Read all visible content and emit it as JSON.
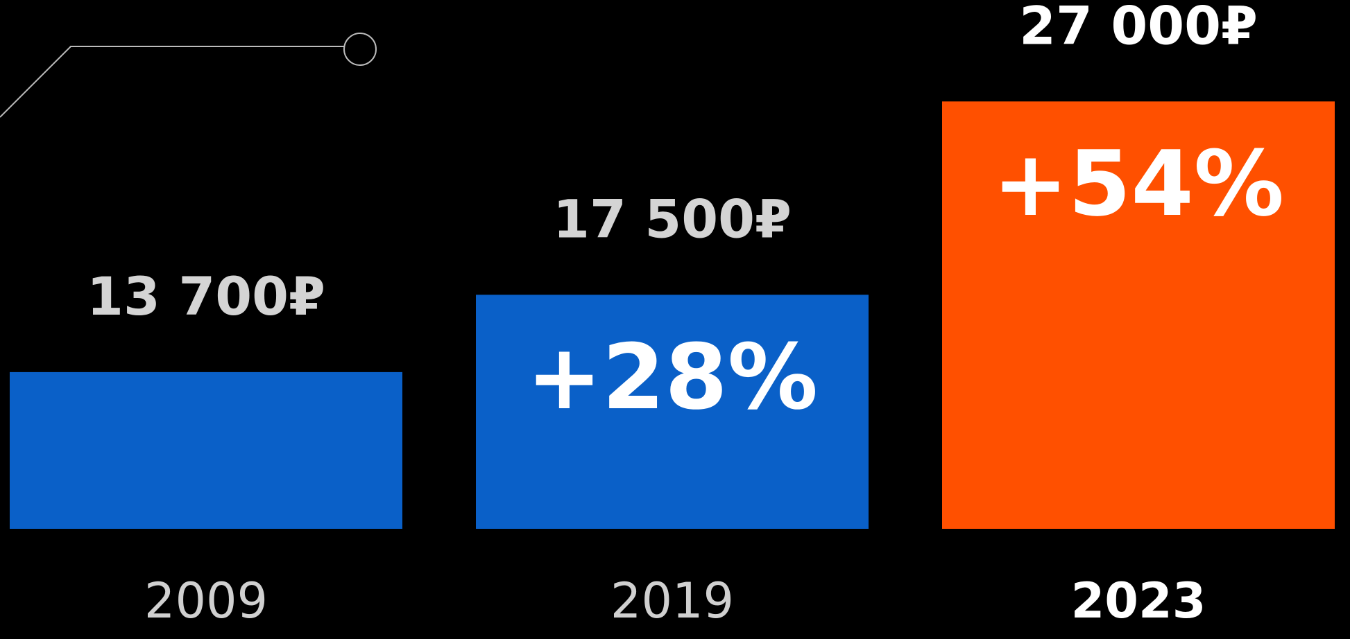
{
  "chart_data": {
    "type": "bar",
    "categories": [
      "2009",
      "2019",
      "2023"
    ],
    "values": [
      13700,
      17500,
      27000
    ],
    "value_labels": [
      "13 700₽",
      "17 500₽",
      "27 000₽"
    ],
    "change_labels": [
      null,
      "+28%",
      "+54%"
    ],
    "colors": [
      "#0a60c8",
      "#0a60c8",
      "#ff5000"
    ],
    "emphasis": [
      false,
      false,
      true
    ],
    "ylim": [
      6000,
      28000
    ],
    "grid": false
  }
}
